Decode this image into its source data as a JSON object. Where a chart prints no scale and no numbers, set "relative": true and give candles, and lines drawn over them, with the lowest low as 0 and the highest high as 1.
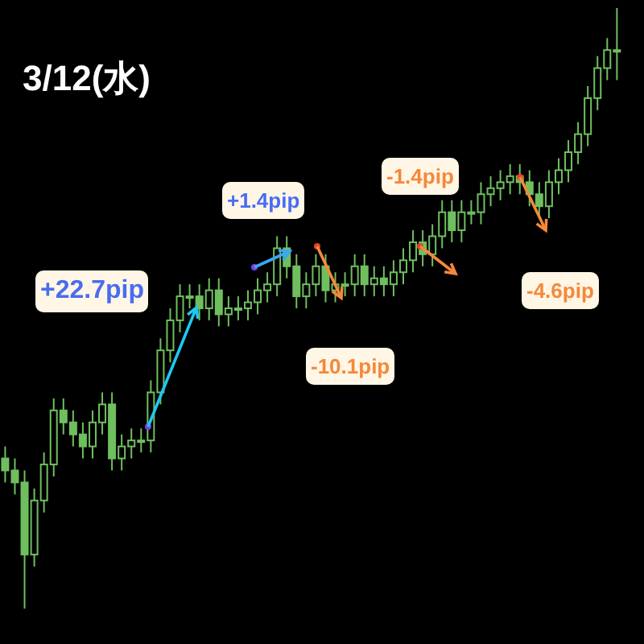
{
  "chart_data": {
    "type": "candlestick",
    "relative": true,
    "color": "#6fbf5f",
    "annotations": [
      "3/12(水)",
      "+22.7pip",
      "+1.4pip",
      "-10.1pip",
      "-1.4pip",
      "-4.6pip"
    ],
    "categories": [
      null,
      null,
      null,
      null,
      null,
      null,
      null,
      null,
      null,
      null,
      null,
      null,
      null,
      null,
      null,
      null,
      null,
      null,
      null,
      null,
      null,
      null,
      null,
      null,
      null,
      null,
      null,
      null,
      null,
      null,
      null,
      null,
      null,
      null,
      null,
      null,
      null,
      null,
      null,
      null,
      null,
      null,
      null,
      null,
      null,
      null,
      null,
      null,
      null,
      null,
      null,
      null,
      null,
      null,
      null,
      null,
      null,
      null,
      null,
      null,
      null,
      null,
      null,
      null
    ],
    "ohlc": [
      [
        0.25,
        0.27,
        0.21,
        0.23
      ],
      [
        0.23,
        0.25,
        0.19,
        0.21
      ],
      [
        0.21,
        0.23,
        0,
        0.09
      ],
      [
        0.09,
        0.2,
        0.07,
        0.18
      ],
      [
        0.18,
        0.26,
        0.16,
        0.24
      ],
      [
        0.24,
        0.35,
        0.22,
        0.33
      ],
      [
        0.33,
        0.35,
        0.29,
        0.31
      ],
      [
        0.31,
        0.33,
        0.27,
        0.29
      ],
      [
        0.29,
        0.31,
        0.25,
        0.27
      ],
      [
        0.27,
        0.33,
        0.25,
        0.31
      ],
      [
        0.31,
        0.36,
        0.29,
        0.34
      ],
      [
        0.34,
        0.36,
        0.23,
        0.25
      ],
      [
        0.25,
        0.29,
        0.23,
        0.27
      ],
      [
        0.27,
        0.3,
        0.25,
        0.28
      ],
      [
        0.28,
        0.3,
        0.26,
        0.28
      ],
      [
        0.28,
        0.38,
        0.26,
        0.36
      ],
      [
        0.36,
        0.45,
        0.34,
        0.43
      ],
      [
        0.43,
        0.5,
        0.41,
        0.48
      ],
      [
        0.48,
        0.54,
        0.46,
        0.52
      ],
      [
        0.52,
        0.54,
        0.5,
        0.52
      ],
      [
        0.52,
        0.54,
        0.48,
        0.5
      ],
      [
        0.5,
        0.55,
        0.48,
        0.53
      ],
      [
        0.53,
        0.55,
        0.47,
        0.49
      ],
      [
        0.49,
        0.52,
        0.47,
        0.5
      ],
      [
        0.5,
        0.52,
        0.48,
        0.5
      ],
      [
        0.5,
        0.53,
        0.48,
        0.51
      ],
      [
        0.51,
        0.55,
        0.49,
        0.53
      ],
      [
        0.53,
        0.56,
        0.51,
        0.54
      ],
      [
        0.54,
        0.62,
        0.52,
        0.6
      ],
      [
        0.6,
        0.62,
        0.55,
        0.57
      ],
      [
        0.57,
        0.59,
        0.5,
        0.52
      ],
      [
        0.52,
        0.56,
        0.5,
        0.54
      ],
      [
        0.54,
        0.59,
        0.52,
        0.57
      ],
      [
        0.57,
        0.59,
        0.51,
        0.53
      ],
      [
        0.53,
        0.56,
        0.51,
        0.54
      ],
      [
        0.54,
        0.56,
        0.52,
        0.54
      ],
      [
        0.54,
        0.59,
        0.52,
        0.57
      ],
      [
        0.57,
        0.59,
        0.52,
        0.54
      ],
      [
        0.54,
        0.57,
        0.52,
        0.55
      ],
      [
        0.55,
        0.57,
        0.52,
        0.54
      ],
      [
        0.54,
        0.58,
        0.52,
        0.56
      ],
      [
        0.56,
        0.6,
        0.54,
        0.58
      ],
      [
        0.58,
        0.63,
        0.56,
        0.61
      ],
      [
        0.61,
        0.63,
        0.57,
        0.59
      ],
      [
        0.59,
        0.64,
        0.57,
        0.62
      ],
      [
        0.62,
        0.68,
        0.6,
        0.66
      ],
      [
        0.66,
        0.68,
        0.61,
        0.63
      ],
      [
        0.63,
        0.68,
        0.61,
        0.66
      ],
      [
        0.66,
        0.68,
        0.64,
        0.66
      ],
      [
        0.66,
        0.71,
        0.64,
        0.69
      ],
      [
        0.69,
        0.72,
        0.67,
        0.7
      ],
      [
        0.7,
        0.73,
        0.68,
        0.71
      ],
      [
        0.71,
        0.74,
        0.69,
        0.72
      ],
      [
        0.72,
        0.74,
        0.69,
        0.71
      ],
      [
        0.71,
        0.73,
        0.67,
        0.69
      ],
      [
        0.69,
        0.71,
        0.65,
        0.67
      ],
      [
        0.67,
        0.73,
        0.65,
        0.71
      ],
      [
        0.71,
        0.75,
        0.69,
        0.73
      ],
      [
        0.73,
        0.78,
        0.71,
        0.76
      ],
      [
        0.76,
        0.81,
        0.74,
        0.79
      ],
      [
        0.79,
        0.87,
        0.77,
        0.85
      ],
      [
        0.85,
        0.92,
        0.83,
        0.9
      ],
      [
        0.9,
        0.95,
        0.88,
        0.93
      ],
      [
        0.93,
        1,
        0.88,
        0.93
      ]
    ]
  }
}
